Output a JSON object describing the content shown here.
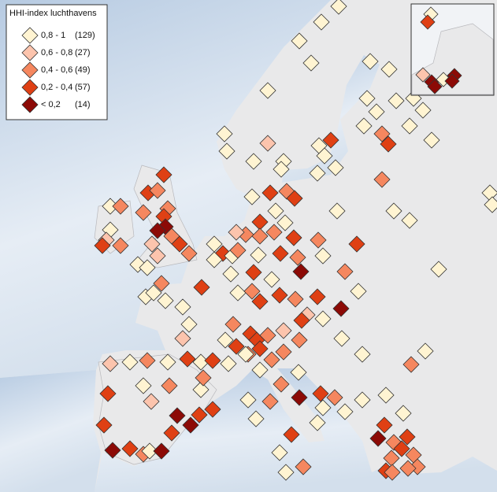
{
  "legend": {
    "title": "HHI-index luchthavens",
    "entries": [
      {
        "label": "0,8 - 1",
        "count": "(129)",
        "color": "#fff4d2"
      },
      {
        "label": "0,6 - 0,8",
        "count": "(27)",
        "color": "#fcc4ad"
      },
      {
        "label": "0,4 - 0,6",
        "count": "(49)",
        "color": "#f5875f"
      },
      {
        "label": "0,2 - 0,4",
        "count": "(57)",
        "color": "#df4014"
      },
      {
        "label": "< 0,2",
        "count": "(14)",
        "color": "#8c0a06"
      }
    ]
  }
}
